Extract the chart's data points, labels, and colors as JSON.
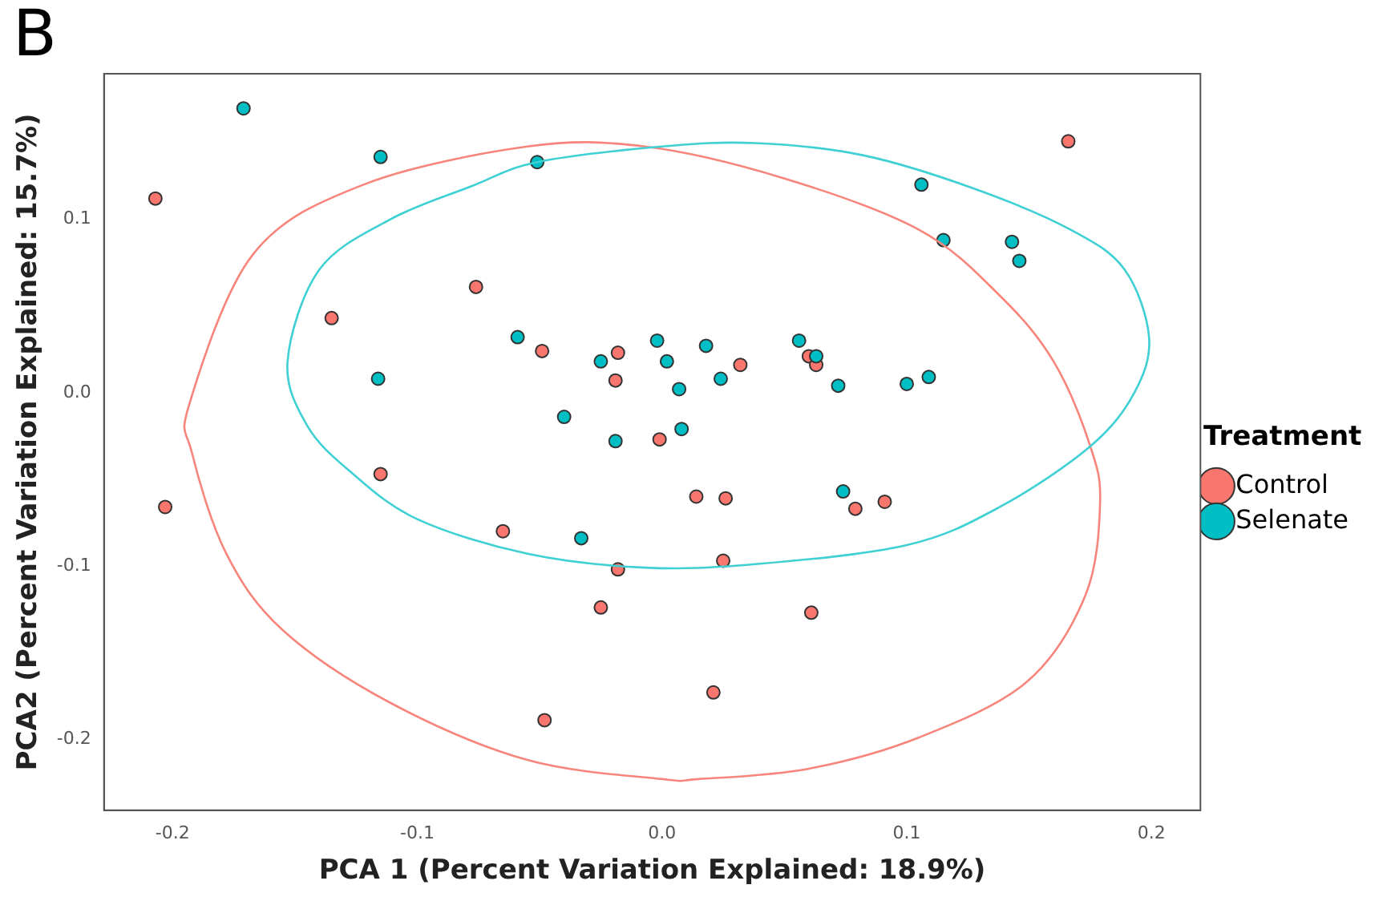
{
  "chart_data": {
    "type": "scatter",
    "xlabel": "PCA 1 (Percent Variation Explained: 18.9%)",
    "ylabel": "PCA2 (Percent Variation Explained: 15.7%)",
    "legend_title": "Treatment",
    "annotations": [
      "B"
    ],
    "legend": "right",
    "grid": false,
    "marker": "circle",
    "xlim": [
      -0.228,
      0.22
    ],
    "ylim": [
      -0.241,
      0.184
    ],
    "xticks": [
      -0.2,
      -0.1,
      {
        "value": 0,
        "label": "0.0"
      },
      0.1,
      0.2
    ],
    "yticks": [
      -0.2,
      -0.1,
      {
        "value": 0,
        "label": "0.0"
      },
      0.1
    ],
    "series": [
      {
        "name": "Control",
        "color": "#f8766d",
        "x": [
          -0.207,
          -0.076,
          -0.135,
          -0.049,
          -0.018,
          -0.019,
          -0.001,
          0.166,
          0.06,
          0.063,
          0.032,
          -0.203,
          -0.115,
          -0.065,
          -0.018,
          -0.025,
          -0.048,
          0.014,
          0.026,
          0.079,
          0.091,
          0.025,
          0.061,
          0.021
        ],
        "values": [
          0.112,
          0.061,
          0.043,
          0.024,
          0.023,
          0.007,
          -0.027,
          0.145,
          0.021,
          0.016,
          0.016,
          -0.066,
          -0.047,
          -0.08,
          -0.102,
          -0.124,
          -0.189,
          -0.06,
          -0.061,
          -0.067,
          -0.063,
          -0.097,
          -0.127,
          -0.173
        ]
      },
      {
        "name": "Selenate",
        "color": "#00bfc4",
        "x": [
          -0.171,
          -0.115,
          -0.051,
          -0.059,
          -0.025,
          -0.002,
          -0.116,
          -0.04,
          -0.019,
          0.106,
          0.115,
          0.143,
          0.146,
          0.018,
          0.002,
          0.024,
          0.007,
          0.056,
          0.063,
          0.072,
          0.1,
          0.109,
          0.008,
          -0.033,
          0.074
        ],
        "values": [
          0.164,
          0.136,
          0.133,
          0.032,
          0.018,
          0.03,
          0.008,
          -0.014,
          -0.028,
          0.12,
          0.088,
          0.087,
          0.076,
          0.027,
          0.018,
          0.008,
          0.002,
          0.03,
          0.021,
          0.004,
          0.005,
          0.009,
          -0.021,
          -0.084,
          -0.057
        ]
      }
    ]
  }
}
